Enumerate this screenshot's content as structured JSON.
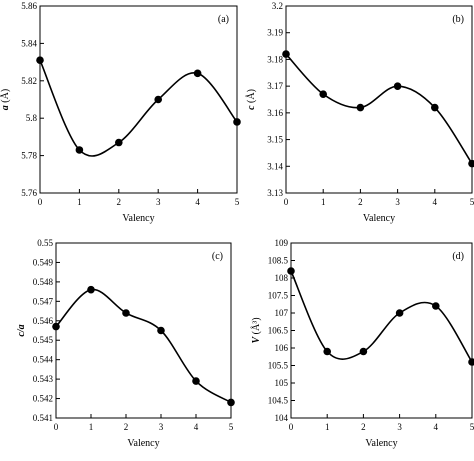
{
  "chart_data": [
    {
      "type": "line",
      "panel_label": "(a)",
      "xlabel": "Valency",
      "ylabel": "a (Å)",
      "ylabel_parts": [
        "a",
        " (Å)"
      ],
      "x": [
        0,
        1,
        2,
        3,
        4,
        5
      ],
      "values": [
        5.831,
        5.783,
        5.787,
        5.81,
        5.824,
        5.798
      ],
      "xlim": [
        0,
        5
      ],
      "ylim": [
        5.76,
        5.86
      ],
      "xticks": [
        "0",
        "1",
        "2",
        "3",
        "4",
        "5"
      ],
      "yticks": [
        "5.76",
        "5.78",
        "5.8",
        "5.82",
        "5.84",
        "5.86"
      ],
      "grid": false
    },
    {
      "type": "line",
      "panel_label": "(b)",
      "xlabel": "Valency",
      "ylabel": "c (Å)",
      "ylabel_parts": [
        "c",
        " (Å)"
      ],
      "x": [
        0,
        1,
        2,
        3,
        4,
        5
      ],
      "values": [
        3.182,
        3.167,
        3.162,
        3.17,
        3.162,
        3.141
      ],
      "xlim": [
        0,
        5
      ],
      "ylim": [
        3.13,
        3.2
      ],
      "xticks": [
        "0",
        "1",
        "2",
        "3",
        "4",
        "5"
      ],
      "yticks": [
        "3.13",
        "3.14",
        "3.15",
        "3.16",
        "3.17",
        "3.18",
        "3.19",
        "3.2"
      ],
      "grid": false
    },
    {
      "type": "line",
      "panel_label": "(c)",
      "xlabel": "Valency",
      "ylabel": "c/a",
      "ylabel_parts": [
        "c/a",
        ""
      ],
      "x": [
        0,
        1,
        2,
        3,
        4,
        5
      ],
      "values": [
        0.5457,
        0.5476,
        0.5464,
        0.5455,
        0.5429,
        0.5418
      ],
      "xlim": [
        0,
        5
      ],
      "ylim": [
        0.541,
        0.55
      ],
      "xticks": [
        "0",
        "1",
        "2",
        "3",
        "4",
        "5"
      ],
      "yticks": [
        "0.541",
        "0.542",
        "0.543",
        "0.544",
        "0.545",
        "0.546",
        "0.547",
        "0.548",
        "0.549",
        "0.55"
      ],
      "grid": false
    },
    {
      "type": "line",
      "panel_label": "(d)",
      "xlabel": "Valency",
      "ylabel": "V (Å³)",
      "ylabel_parts": [
        "V",
        " (Å³)"
      ],
      "x": [
        0,
        1,
        2,
        3,
        4,
        5
      ],
      "values": [
        108.2,
        105.9,
        105.9,
        107.0,
        107.2,
        105.6
      ],
      "xlim": [
        0,
        5
      ],
      "ylim": [
        104,
        109
      ],
      "xticks": [
        "0",
        "1",
        "2",
        "3",
        "4",
        "5"
      ],
      "yticks": [
        "104",
        "104.5",
        "105",
        "105.5",
        "106",
        "106.5",
        "107",
        "107.5",
        "108",
        "108.5",
        "109"
      ],
      "grid": false
    }
  ]
}
